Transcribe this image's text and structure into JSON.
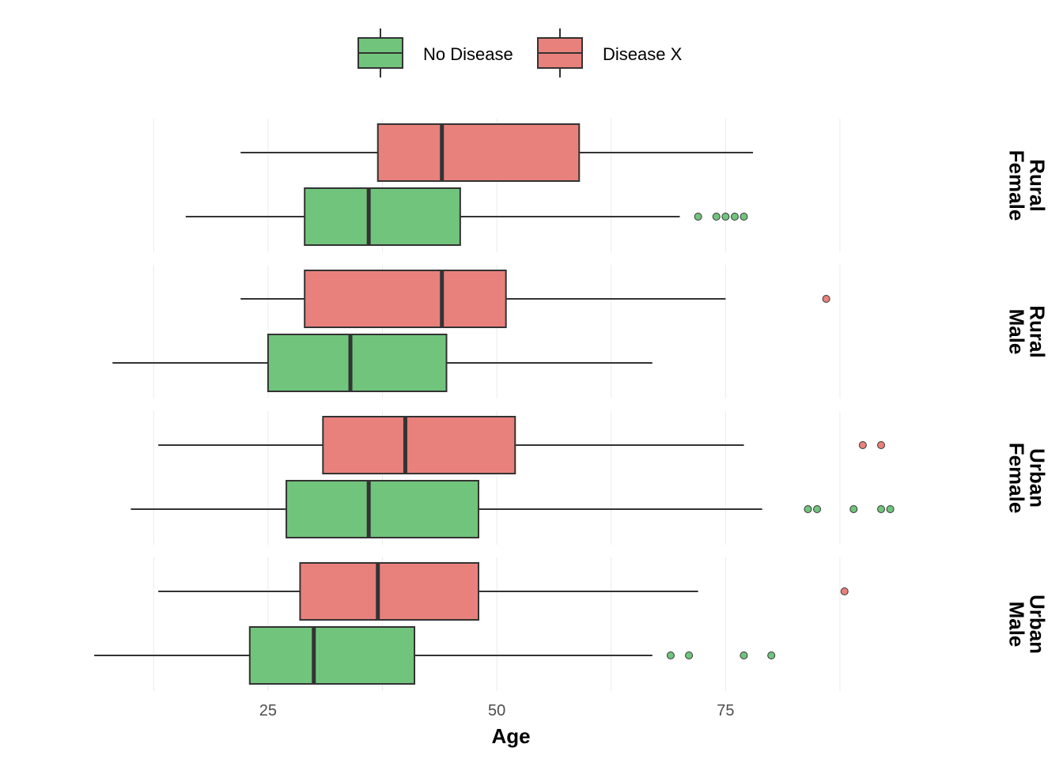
{
  "chart_data": {
    "type": "boxplot",
    "orientation": "horizontal",
    "xlabel": "Age",
    "ylabel": "",
    "xlim": [
      -3,
      99
    ],
    "x_ticks": [
      25,
      50,
      75
    ],
    "grid": "vertical major and minor lines",
    "legend_position": "top",
    "series": [
      {
        "name": "No Disease",
        "color": "#71c47c"
      },
      {
        "name": "Disease X",
        "color": "#e8817b"
      }
    ],
    "panels": [
      {
        "strip_label": [
          "Rural",
          "Female"
        ],
        "boxes": [
          {
            "series": "Disease X",
            "whisker_low": 22,
            "q1": 37,
            "median": 44,
            "q3": 59,
            "whisker_high": 78,
            "outliers": []
          },
          {
            "series": "No Disease",
            "whisker_low": 16,
            "q1": 29,
            "median": 36,
            "q3": 46,
            "whisker_high": 70,
            "outliers": [
              72,
              74,
              75,
              76,
              77
            ]
          }
        ]
      },
      {
        "strip_label": [
          "Rural",
          "Male"
        ],
        "boxes": [
          {
            "series": "Disease X",
            "whisker_low": 22,
            "q1": 29,
            "median": 44,
            "q3": 51,
            "whisker_high": 75,
            "outliers": [
              86
            ]
          },
          {
            "series": "No Disease",
            "whisker_low": 8,
            "q1": 25,
            "median": 34,
            "q3": 44.5,
            "whisker_high": 67,
            "outliers": []
          }
        ]
      },
      {
        "strip_label": [
          "Urban",
          "Female"
        ],
        "boxes": [
          {
            "series": "Disease X",
            "whisker_low": 13,
            "q1": 31,
            "median": 40,
            "q3": 52,
            "whisker_high": 77,
            "outliers": [
              90,
              92
            ]
          },
          {
            "series": "No Disease",
            "whisker_low": 10,
            "q1": 27,
            "median": 36,
            "q3": 48,
            "whisker_high": 79,
            "outliers": [
              84,
              85,
              89,
              92,
              93
            ]
          }
        ]
      },
      {
        "strip_label": [
          "Urban",
          "Male"
        ],
        "boxes": [
          {
            "series": "Disease X",
            "whisker_low": 13,
            "q1": 28.5,
            "median": 37,
            "q3": 48,
            "whisker_high": 72,
            "outliers": [
              88
            ]
          },
          {
            "series": "No Disease",
            "whisker_low": 6,
            "q1": 23,
            "median": 30,
            "q3": 41,
            "whisker_high": 67,
            "outliers": [
              69,
              71,
              77,
              80
            ]
          }
        ]
      }
    ]
  }
}
